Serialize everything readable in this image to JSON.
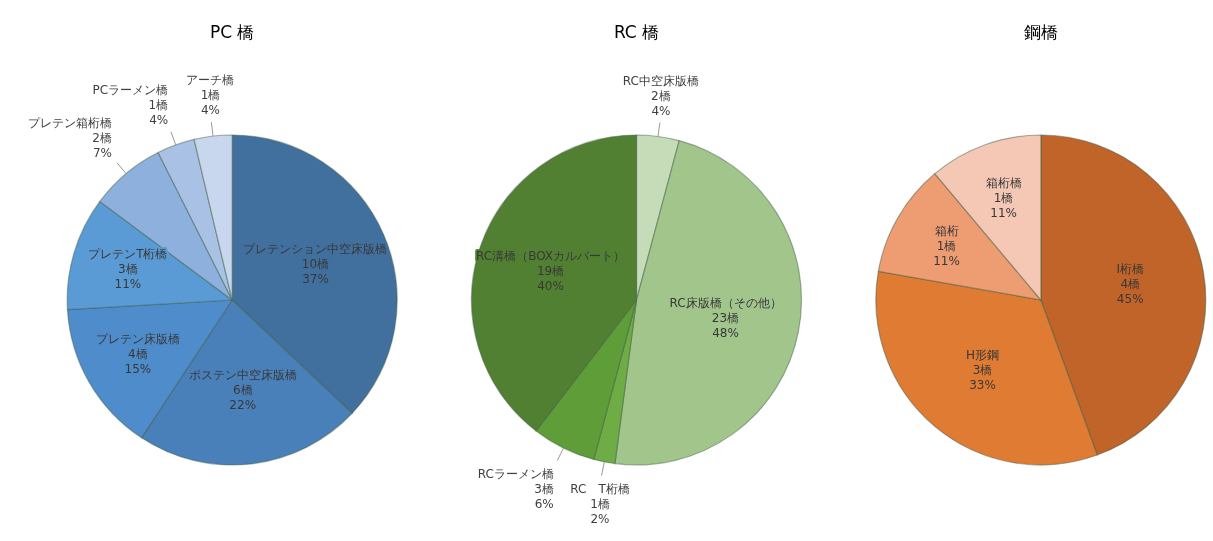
{
  "chart_data": [
    {
      "type": "pie",
      "title": "PC 橋",
      "categories": [
        "プレテンション中空床版橋",
        "ポステン中空床版橋",
        "プレテン床版橋",
        "プレテンT桁橋",
        "プレテン箱桁橋",
        "PCラーメン橋",
        "アーチ橋"
      ],
      "values": [
        10,
        6,
        4,
        3,
        2,
        1,
        1
      ],
      "value_labels": [
        "10橋\n37%",
        "6橋\n22%",
        "4橋\n15%",
        "3橋\n11%",
        "2橋\n7%",
        "1橋\n4%",
        "1橋\n4%"
      ],
      "colors": [
        "#41709f",
        "#4a80ba",
        "#4f8ccb",
        "#5b9bd5",
        "#8eb0dc",
        "#a9c1e4",
        "#c9d7ee"
      ]
    },
    {
      "type": "pie",
      "title": "RC 橋",
      "categories": [
        "RC中空床版橋",
        "RC床版橋（その他）",
        "RC　T桁橋",
        "RCラーメン橋",
        "RC溝橋（BOXカルバート）"
      ],
      "values": [
        2,
        23,
        1,
        3,
        19
      ],
      "value_labels": [
        "2橋\n4%",
        "23橋\n48%",
        "1橋\n2%",
        "3橋\n6%",
        "19橋\n40%"
      ],
      "colors": [
        "#c6dcb9",
        "#a2c58c",
        "#6fac46",
        "#5f9d39",
        "#528033"
      ]
    },
    {
      "type": "pie",
      "title": "鋼橋",
      "categories": [
        "I桁橋",
        "H形鋼",
        "箱桁",
        "箱桁橋"
      ],
      "values": [
        4,
        3,
        1,
        1
      ],
      "value_labels": [
        "4橋\n45%",
        "3橋\n33%",
        "1橋\n11%",
        "1橋\n11%"
      ],
      "colors": [
        "#c0642a",
        "#e07b33",
        "#ee9c72",
        "#f4c8b5"
      ]
    }
  ]
}
